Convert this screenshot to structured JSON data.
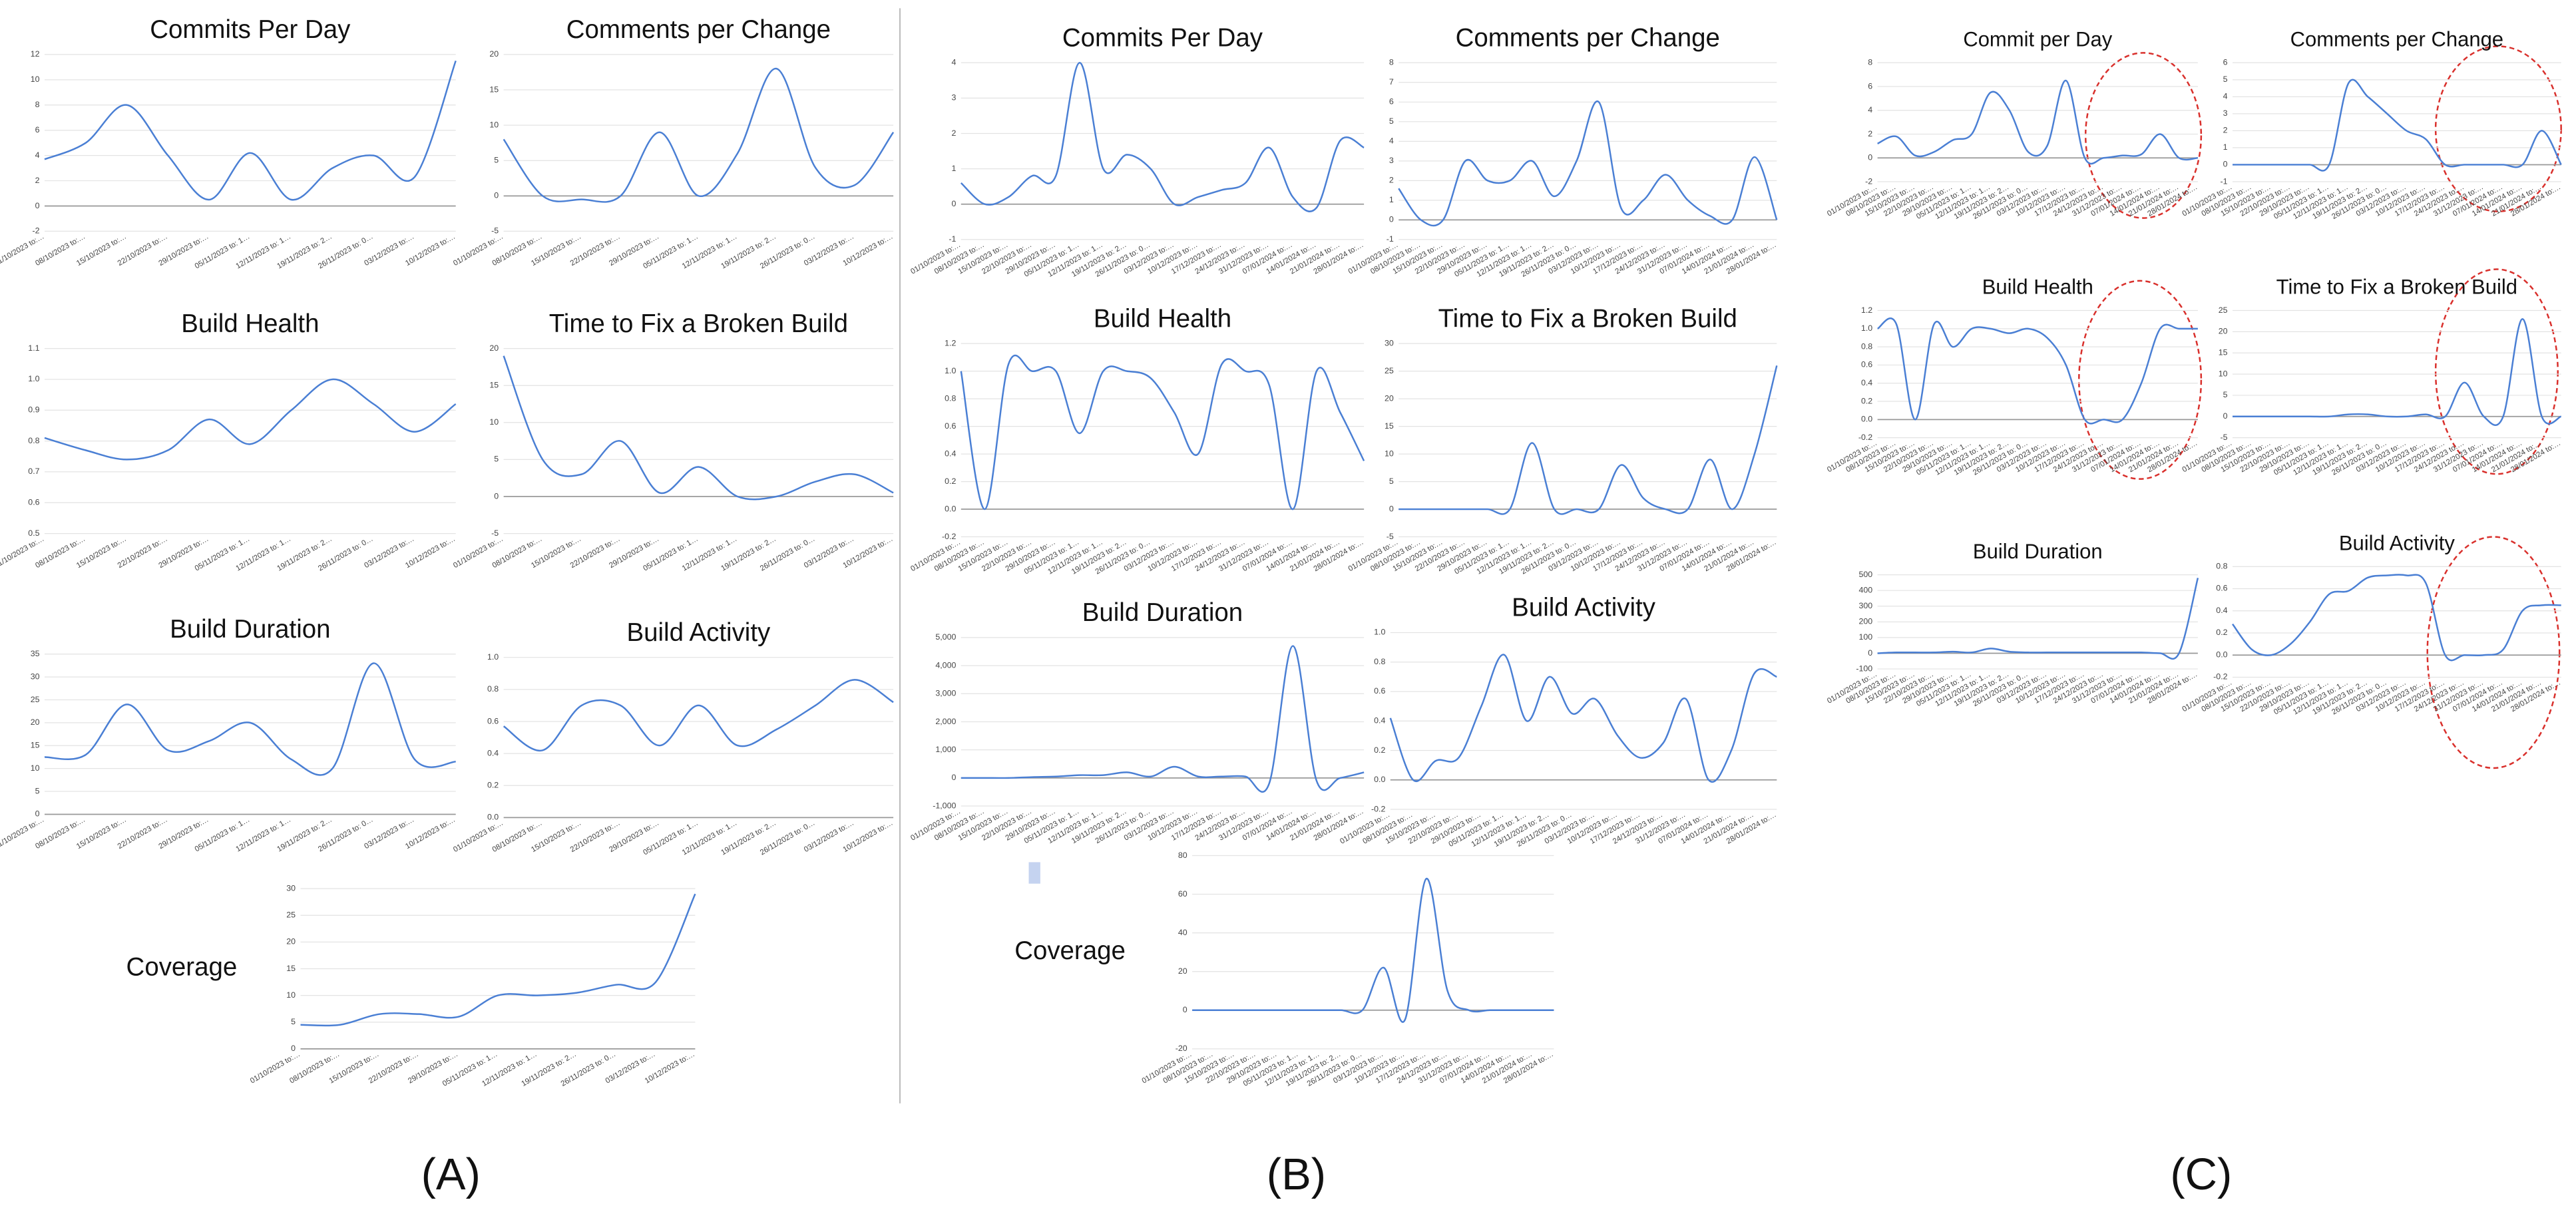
{
  "panels": [
    {
      "label": "(A)",
      "categories": [
        "01/10/2023 to:…",
        "08/10/2023 to:…",
        "15/10/2023 to:…",
        "22/10/2023 to:…",
        "29/10/2023 to:…",
        "05/11/2023 to: 1…",
        "12/11/2023 to: 1…",
        "19/11/2023 to: 2…",
        "26/11/2023 to: 0…",
        "03/12/2023 to:…",
        "10/12/2023 to:…"
      ],
      "chart_data": [
        {
          "type": "line",
          "title": "Commits Per Day",
          "color": "#4a7fd4",
          "ylim": [
            -2,
            12
          ],
          "yticks": [
            -2,
            0,
            2,
            4,
            6,
            8,
            10,
            12
          ],
          "values": [
            3.7,
            5,
            8,
            4,
            0.5,
            4.2,
            0.5,
            3,
            4,
            2.3,
            11.5
          ]
        },
        {
          "type": "line",
          "title": "Comments per Change",
          "color": "#4a7fd4",
          "ylim": [
            -5,
            20
          ],
          "yticks": [
            -5,
            0,
            5,
            10,
            15,
            20
          ],
          "values": [
            8,
            0,
            -0.5,
            0,
            9,
            0,
            6,
            18,
            4,
            1.5,
            9
          ]
        },
        {
          "type": "line",
          "title": "Build Health",
          "color": "#4a7fd4",
          "ylim": [
            0.5,
            1.1
          ],
          "yticks": [
            0.5,
            0.6,
            0.7,
            0.8,
            0.9,
            {
              "value": 1,
              "label": "1.0"
            },
            1.1
          ],
          "values": [
            0.81,
            0.77,
            0.74,
            0.77,
            0.87,
            0.79,
            0.9,
            1.0,
            0.92,
            0.83,
            0.92
          ]
        },
        {
          "type": "line",
          "title": "Time to Fix a Broken Build",
          "color": "#4a7fd4",
          "ylim": [
            -5,
            20
          ],
          "yticks": [
            -5,
            0,
            5,
            10,
            15,
            20
          ],
          "values": [
            19,
            5,
            3,
            7.5,
            0.5,
            4,
            0,
            0,
            2,
            3,
            0.5
          ]
        },
        {
          "type": "line",
          "title": "Build Duration",
          "color": "#4a7fd4",
          "ylim": [
            0,
            35
          ],
          "yticks": [
            0,
            5,
            10,
            15,
            20,
            25,
            30,
            35
          ],
          "values": [
            12.5,
            13,
            24,
            14,
            16,
            20,
            12,
            10,
            33,
            12,
            11.5
          ]
        },
        {
          "type": "line",
          "title": "Build Activity",
          "color": "#4a7fd4",
          "ylim": [
            0,
            1
          ],
          "yticks": [
            {
              "value": 0,
              "label": "0.0"
            },
            0.2,
            0.4,
            0.6,
            0.8,
            {
              "value": 1,
              "label": "1.0"
            }
          ],
          "values": [
            0.57,
            0.42,
            0.7,
            0.7,
            0.45,
            0.7,
            0.45,
            0.55,
            0.7,
            0.86,
            0.72
          ]
        },
        {
          "type": "line",
          "title": "Coverage",
          "color": "#4a7fd4",
          "ylim": [
            0,
            30
          ],
          "yticks": [
            0,
            5,
            10,
            15,
            20,
            25,
            30
          ],
          "values": [
            4.5,
            4.5,
            6.5,
            6.5,
            6,
            10,
            10,
            10.5,
            12,
            12.5,
            29
          ]
        }
      ]
    },
    {
      "label": "(B)",
      "categories": [
        "01/10/2023 to:…",
        "08/10/2023 to:…",
        "15/10/2023 to:…",
        "22/10/2023 to:…",
        "29/10/2023 to:…",
        "05/11/2023 to: 1…",
        "12/11/2023 to: 1…",
        "19/11/2023 to: 2…",
        "26/11/2023 to: 0…",
        "03/12/2023 to:…",
        "10/12/2023 to:…",
        "17/12/2023 to:…",
        "24/12/2023 to:…",
        "31/12/2023 to:…",
        "07/01/2024 to:…",
        "14/01/2024 to:…",
        "21/01/2024 to:…",
        "28/01/2024 to:…"
      ],
      "chart_data": [
        {
          "type": "line",
          "title": "Commits Per Day",
          "color": "#4a7fd4",
          "ylim": [
            -1,
            4
          ],
          "yticks": [
            -1,
            0,
            1,
            2,
            3,
            4
          ],
          "values": [
            0.6,
            0,
            0.2,
            0.8,
            0.8,
            4,
            1,
            1.4,
            1,
            0,
            0.2,
            0.4,
            0.6,
            1.6,
            0.2,
            -0.1,
            1.8,
            1.6
          ]
        },
        {
          "type": "line",
          "title": "Comments per Change",
          "color": "#4a7fd4",
          "ylim": [
            -1,
            8
          ],
          "yticks": [
            -1,
            0,
            1,
            2,
            3,
            4,
            5,
            6,
            7,
            8
          ],
          "values": [
            1.6,
            0,
            0,
            3,
            2,
            2,
            3,
            1.2,
            3,
            6,
            0.6,
            1,
            2.3,
            1,
            0.2,
            0,
            3.2,
            0
          ]
        },
        {
          "type": "line",
          "title": "Build Health",
          "color": "#4a7fd4",
          "ylim": [
            -0.2,
            1.2
          ],
          "yticks": [
            -0.2,
            {
              "value": 0,
              "label": "0.0"
            },
            0.2,
            0.4,
            0.6,
            0.8,
            {
              "value": 1,
              "label": "1.0"
            },
            1.2
          ],
          "values": [
            1.0,
            0,
            1.05,
            1.0,
            1.0,
            0.55,
            1.0,
            1.0,
            0.95,
            0.7,
            0.4,
            1.05,
            1.0,
            0.9,
            0,
            1.0,
            0.7,
            0.35
          ]
        },
        {
          "type": "line",
          "title": "Time to Fix a Broken Build",
          "color": "#4a7fd4",
          "ylim": [
            -5,
            30
          ],
          "yticks": [
            -5,
            0,
            5,
            10,
            15,
            20,
            25,
            30
          ],
          "values": [
            0,
            0,
            0,
            0,
            0,
            0,
            12,
            0,
            0,
            0,
            8,
            2,
            0,
            0,
            9,
            0,
            10,
            26
          ]
        },
        {
          "type": "line",
          "title": "Build Duration",
          "color": "#4a7fd4",
          "ylim": [
            -1000,
            5000
          ],
          "yticks": [
            {
              "value": -1000,
              "label": "-1,000"
            },
            0,
            {
              "value": 1000,
              "label": "1,000"
            },
            {
              "value": 2000,
              "label": "2,000"
            },
            {
              "value": 3000,
              "label": "3,000"
            },
            {
              "value": 4000,
              "label": "4,000"
            },
            {
              "value": 5000,
              "label": "5,000"
            }
          ],
          "values": [
            0,
            0,
            0,
            30,
            50,
            100,
            100,
            200,
            50,
            400,
            50,
            50,
            50,
            -200,
            4700,
            -100,
            0,
            200
          ]
        },
        {
          "type": "line",
          "title": "Build Activity",
          "color": "#4a7fd4",
          "ylim": [
            -0.2,
            1
          ],
          "yticks": [
            -0.2,
            {
              "value": 0,
              "label": "0.0"
            },
            0.2,
            0.4,
            0.6,
            0.8,
            {
              "value": 1,
              "label": "1.0"
            }
          ],
          "values": [
            0.42,
            0,
            0.13,
            0.15,
            0.5,
            0.85,
            0.4,
            0.7,
            0.45,
            0.55,
            0.3,
            0.15,
            0.25,
            0.55,
            0,
            0.2,
            0.72,
            0.7
          ]
        },
        {
          "type": "line",
          "title": "Coverage",
          "color": "#4a7fd4",
          "ylim": [
            -20,
            80
          ],
          "yticks": [
            -20,
            0,
            20,
            40,
            60,
            80
          ],
          "values": [
            0,
            0,
            0,
            0,
            0,
            0,
            0,
            0,
            0,
            22,
            -5,
            68,
            10,
            0,
            0,
            0,
            0,
            0
          ]
        }
      ]
    },
    {
      "label": "(C)",
      "categories": [
        "01/10/2023 to:…",
        "08/10/2023 to:…",
        "15/10/2023 to:…",
        "22/10/2023 to:…",
        "29/10/2023 to:…",
        "05/11/2023 to: 1…",
        "12/11/2023 to: 1…",
        "19/11/2023 to: 2…",
        "26/11/2023 to: 0…",
        "03/12/2023 to:…",
        "10/12/2023 to:…",
        "17/12/2023 to:…",
        "24/12/2023 to:…",
        "31/12/2023 to:…",
        "07/01/2024 to:…",
        "14/01/2024 to:…",
        "21/01/2024 to:…",
        "28/01/2024 to:…"
      ],
      "chart_data": [
        {
          "type": "line",
          "title": "Commit per Day",
          "color": "#4a7fd4",
          "ylim": [
            -2,
            8
          ],
          "yticks": [
            -2,
            0,
            2,
            4,
            6,
            8
          ],
          "values": [
            1.2,
            1.8,
            0.2,
            0.5,
            1.5,
            2,
            5.5,
            4,
            0.5,
            1,
            6.5,
            0,
            0,
            0.2,
            0.3,
            2,
            0,
            0
          ]
        },
        {
          "type": "line",
          "title": "Comments per Change",
          "color": "#4a7fd4",
          "ylim": [
            -1,
            6
          ],
          "yticks": [
            -1,
            0,
            1,
            2,
            3,
            4,
            5,
            6
          ],
          "values": [
            0,
            0,
            0,
            0,
            0,
            0,
            4.8,
            4,
            3,
            2,
            1.5,
            0,
            0,
            0,
            0,
            0,
            2,
            0
          ]
        },
        {
          "type": "line",
          "title": "Build Health",
          "color": "#4a7fd4",
          "ylim": [
            -0.2,
            1.2
          ],
          "yticks": [
            -0.2,
            {
              "value": 0,
              "label": "0.0"
            },
            0.2,
            0.4,
            0.6,
            0.8,
            {
              "value": 1,
              "label": "1.0"
            },
            1.2
          ],
          "values": [
            1.0,
            1.05,
            0,
            1.05,
            0.8,
            1.0,
            1.0,
            0.95,
            1.0,
            0.9,
            0.6,
            0,
            0,
            0,
            0.4,
            1.0,
            1.0,
            1.0
          ]
        },
        {
          "type": "line",
          "title": "Time to Fix a Broken Build",
          "color": "#4a7fd4",
          "ylim": [
            -5,
            25
          ],
          "yticks": [
            -5,
            0,
            5,
            10,
            15,
            20,
            25
          ],
          "values": [
            0,
            0,
            0,
            0,
            0,
            0,
            0.5,
            0.5,
            0,
            0,
            0.5,
            0,
            8,
            0,
            0,
            23,
            0,
            0
          ]
        },
        {
          "type": "line",
          "title": "Build Duration",
          "color": "#4a7fd4",
          "ylim": [
            -100,
            500
          ],
          "yticks": [
            -100,
            0,
            100,
            200,
            300,
            400,
            500
          ],
          "values": [
            0,
            5,
            5,
            5,
            10,
            5,
            30,
            10,
            5,
            5,
            5,
            5,
            5,
            5,
            5,
            0,
            0,
            480
          ]
        },
        {
          "type": "line",
          "title": "Build Activity",
          "color": "#4a7fd4",
          "ylim": [
            -0.2,
            0.8
          ],
          "yticks": [
            -0.2,
            {
              "value": 0,
              "label": "0.0"
            },
            0.2,
            0.4,
            0.6,
            0.8
          ],
          "values": [
            0.28,
            0.05,
            0,
            0.1,
            0.3,
            0.55,
            0.58,
            0.7,
            0.72,
            0.72,
            0.65,
            0,
            0,
            0,
            0.05,
            0.4,
            0.45,
            0.45
          ]
        }
      ]
    }
  ]
}
